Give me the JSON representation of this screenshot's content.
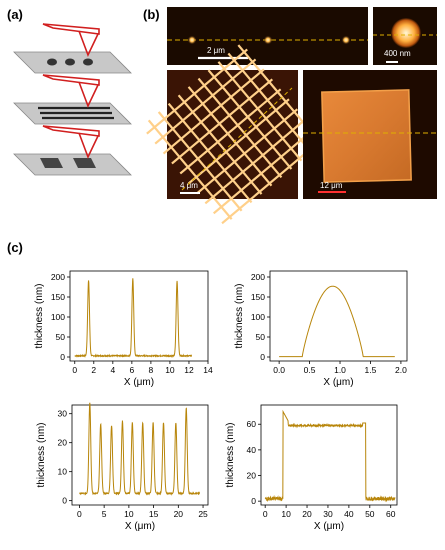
{
  "figure": {
    "panel_labels": {
      "a": "(a)",
      "b": "(b)",
      "c": "(c)"
    },
    "colors": {
      "afm_dark": "#1a0a00",
      "afm_mid": "#8a3c08",
      "afm_bright": "#ffcf6a",
      "dashed_line": "#e0b000",
      "cantilever": "#d11f1f",
      "substrate": "#c8c8c8",
      "features": "#333333",
      "trace": "#b8860b"
    },
    "schematic": {
      "items": [
        {
          "name": "dots",
          "pattern": "dot-pattern-icon"
        },
        {
          "name": "lines",
          "pattern": "line-pattern-icon"
        },
        {
          "name": "squares",
          "pattern": "square-pattern-icon"
        }
      ]
    },
    "afm_images": {
      "dots_wide": {
        "scale_label": "2 μm"
      },
      "dot_zoom": {
        "scale_label": "400 nm"
      },
      "grid": {
        "scale_label": "4 μm"
      },
      "square": {
        "scale_label": "12 μm"
      }
    }
  },
  "chart_data": [
    {
      "type": "line",
      "xlabel": "X (μm)",
      "ylabel": "thickness (nm)",
      "xlim": [
        -0.5,
        14
      ],
      "ylim": [
        -10,
        215
      ],
      "xticks": [
        0,
        2,
        4,
        6,
        8,
        10,
        12,
        14
      ],
      "yticks": [
        0,
        50,
        100,
        150,
        200
      ],
      "peaks": [
        {
          "x": 1.45,
          "height": 188
        },
        {
          "x": 6.1,
          "height": 193
        },
        {
          "x": 10.75,
          "height": 187
        }
      ],
      "baseline": 3,
      "x_range": [
        0,
        12.3
      ]
    },
    {
      "type": "line",
      "xlabel": "X (μm)",
      "ylabel": "thickness (nm)",
      "xlim": [
        -0.15,
        2.1
      ],
      "ylim": [
        -10,
        215
      ],
      "xticks": [
        0.0,
        0.5,
        1.0,
        1.5,
        2.0
      ],
      "yticks": [
        0,
        50,
        100,
        150,
        200
      ],
      "dome": {
        "start": 0.38,
        "end": 1.38,
        "height": 176
      },
      "baseline": 1,
      "x_range": [
        0,
        1.9
      ]
    },
    {
      "type": "line",
      "xlabel": "X (μm)",
      "ylabel": "thickness (nm)",
      "xlim": [
        -1.5,
        26
      ],
      "ylim": [
        -1.5,
        33
      ],
      "xticks": [
        0,
        5,
        10,
        15,
        20,
        25
      ],
      "yticks": [
        0,
        10,
        20,
        30
      ],
      "peaks": [
        {
          "x": 2.1,
          "height": 31.5
        },
        {
          "x": 4.3,
          "height": 24
        },
        {
          "x": 6.5,
          "height": 23.5
        },
        {
          "x": 8.7,
          "height": 25
        },
        {
          "x": 10.7,
          "height": 24.5
        },
        {
          "x": 12.8,
          "height": 24.5
        },
        {
          "x": 14.9,
          "height": 24.5
        },
        {
          "x": 17.0,
          "height": 24.5
        },
        {
          "x": 19.5,
          "height": 24.5
        },
        {
          "x": 21.6,
          "height": 29.5
        }
      ],
      "baseline": 2.5,
      "x_range": [
        0,
        24.3
      ]
    },
    {
      "type": "line",
      "xlabel": "X (μm)",
      "ylabel": "thickness (nm)",
      "xlim": [
        -2,
        63
      ],
      "ylim": [
        -3,
        75
      ],
      "xticks": [
        0,
        10,
        20,
        30,
        40,
        50,
        60
      ],
      "yticks": [
        0,
        20,
        40,
        60
      ],
      "plateau": {
        "start": 8.5,
        "end": 48,
        "height": 59,
        "edge_spike": 70
      },
      "baseline": 2,
      "x_range": [
        0,
        62
      ]
    }
  ]
}
